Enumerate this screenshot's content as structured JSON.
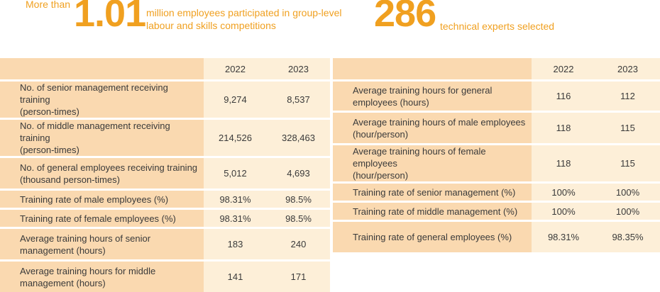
{
  "highlights": {
    "left_prefix": "More than",
    "left_number": "1.01",
    "left_text_line1": "million employees participated in group-level",
    "left_text_line2": "labour and skills competitions",
    "right_number": "286",
    "right_text": "technical experts selected"
  },
  "left_table": {
    "years": [
      "2022",
      "2023"
    ],
    "rows": [
      {
        "label_l1": "No. of senior management receiving training",
        "label_l2": "(person-times)",
        "v2022": "9,274",
        "v2023": "8,537"
      },
      {
        "label_l1": "No. of middle management receiving training",
        "label_l2": "(person-times)",
        "v2022": "214,526",
        "v2023": "328,463"
      },
      {
        "label_l1": "No. of general employees receiving training",
        "label_l2": "(thousand person-times)",
        "v2022": "5,012",
        "v2023": "4,693"
      },
      {
        "label_l1": "Training rate of male employees (%)",
        "label_l2": "",
        "v2022": "98.31%",
        "v2023": "98.5%"
      },
      {
        "label_l1": "Training rate of female employees (%)",
        "label_l2": "",
        "v2022": "98.31%",
        "v2023": "98.5%"
      },
      {
        "label_l1": "Average training hours of senior",
        "label_l2": "management (hours)",
        "v2022": "183",
        "v2023": "240"
      },
      {
        "label_l1": "Average training hours for middle",
        "label_l2": "management (hours)",
        "v2022": "141",
        "v2023": "171"
      }
    ]
  },
  "right_table": {
    "years": [
      "2022",
      "2023"
    ],
    "rows": [
      {
        "label_l1": "Average training hours for general",
        "label_l2": "employees (hours)",
        "v2022": "116",
        "v2023": "112"
      },
      {
        "label_l1": "Average training hours of male employees",
        "label_l2": "(hour/person)",
        "v2022": "118",
        "v2023": "115"
      },
      {
        "label_l1": "Average training hours of female employees",
        "label_l2": "(hour/person)",
        "v2022": "118",
        "v2023": "115"
      },
      {
        "label_l1": "Training rate of senior management (%)",
        "label_l2": "",
        "v2022": "100%",
        "v2023": "100%"
      },
      {
        "label_l1": "Training rate of middle management (%)",
        "label_l2": "",
        "v2022": "100%",
        "v2023": "100%"
      },
      {
        "label_l1": "Training rate of general employees (%)",
        "label_l2": "",
        "v2022": "98.31%",
        "v2023": "98.35%"
      }
    ]
  }
}
